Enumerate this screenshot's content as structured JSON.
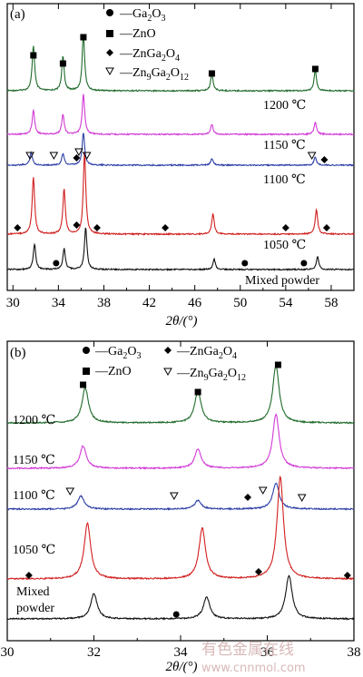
{
  "colors": {
    "c1200": "#1f6b2b",
    "c1150": "#d13ad6",
    "c1100": "#2d3fa6",
    "c1050": "#d11f1f",
    "cMixed": "#111111",
    "watermark": "#d9b8b8"
  },
  "watermark": {
    "cn": "有色金属在线",
    "url": "www.cnnmol.com"
  },
  "chart_data": [
    {
      "type": "line",
      "panel_tag": "(a)",
      "xlabel_main": "2θ/(°)",
      "xlim": [
        29.5,
        60
      ],
      "x_ticks": [
        30,
        34,
        38,
        42,
        46,
        50,
        54,
        58
      ],
      "legend": [
        {
          "marker": "circle",
          "label": "Ga2O3"
        },
        {
          "marker": "square",
          "label": "ZnO"
        },
        {
          "marker": "diamond",
          "label": "ZnGa2O4"
        },
        {
          "marker": "triangle",
          "label": "Zn9Ga2O12"
        }
      ],
      "traces": [
        {
          "name": "1200 ℃",
          "label": "1200 ℃",
          "color": "#1f6b2b",
          "peaks": [
            [
              31.8,
              0.8
            ],
            [
              34.4,
              0.6
            ],
            [
              36.2,
              1.0
            ],
            [
              47.5,
              0.3
            ],
            [
              56.6,
              0.35
            ]
          ]
        },
        {
          "name": "1150 ℃",
          "label": "1150 ℃",
          "color": "#d13ad6",
          "peaks": [
            [
              31.8,
              0.6
            ],
            [
              34.4,
              0.5
            ],
            [
              36.2,
              1.0
            ],
            [
              47.5,
              0.25
            ],
            [
              56.6,
              0.3
            ]
          ]
        },
        {
          "name": "1100 ℃",
          "label": "1100 ℃",
          "color": "#2d3fa6",
          "peaks": [
            [
              31.6,
              0.4
            ],
            [
              34.4,
              0.35
            ],
            [
              36.2,
              1.0
            ],
            [
              47.5,
              0.2
            ],
            [
              56.6,
              0.25
            ]
          ]
        },
        {
          "name": "1050 ℃",
          "label": "1050 ℃",
          "color": "#d11f1f",
          "peaks": [
            [
              31.8,
              0.7
            ],
            [
              34.5,
              0.55
            ],
            [
              36.3,
              1.0
            ],
            [
              47.6,
              0.25
            ],
            [
              56.7,
              0.3
            ]
          ]
        },
        {
          "name": "Mixed powder",
          "label": "Mixed powder",
          "color": "#111111",
          "peaks": [
            [
              31.9,
              0.6
            ],
            [
              34.5,
              0.5
            ],
            [
              36.4,
              1.0
            ],
            [
              47.7,
              0.25
            ],
            [
              56.8,
              0.3
            ]
          ]
        }
      ]
    },
    {
      "type": "line",
      "panel_tag": "(b)",
      "xlabel_main": "2θ/(°)",
      "xlim": [
        30,
        38
      ],
      "x_ticks": [
        30,
        32,
        34,
        36,
        38
      ],
      "legend": [
        {
          "marker": "circle",
          "label": "Ga2O3"
        },
        {
          "marker": "square",
          "label": "ZnO"
        },
        {
          "marker": "diamond",
          "label": "ZnGa2O4"
        },
        {
          "marker": "triangle",
          "label": "Zn9Ga2O12"
        }
      ],
      "traces": [
        {
          "name": "1200 ℃",
          "label": "1200 ℃",
          "color": "#1f6b2b",
          "peaks": [
            [
              31.8,
              0.55
            ],
            [
              34.4,
              0.5
            ],
            [
              36.2,
              0.9
            ]
          ]
        },
        {
          "name": "1150 ℃",
          "label": "1150 ℃",
          "color": "#d13ad6",
          "peaks": [
            [
              31.75,
              0.35
            ],
            [
              34.4,
              0.3
            ],
            [
              36.2,
              0.85
            ]
          ]
        },
        {
          "name": "1100 ℃",
          "label": "1100 ℃",
          "color": "#2d3fa6",
          "peaks": [
            [
              31.7,
              0.3
            ],
            [
              34.4,
              0.2
            ],
            [
              36.2,
              0.6
            ]
          ]
        },
        {
          "name": "1050 ℃",
          "label": "1050 ℃",
          "color": "#d11f1f",
          "peaks": [
            [
              31.85,
              0.55
            ],
            [
              34.5,
              0.5
            ],
            [
              36.3,
              1.0
            ]
          ]
        },
        {
          "name": "Mixed powder",
          "label": "Mixed\npowder",
          "color": "#111111",
          "peaks": [
            [
              32.0,
              0.35
            ],
            [
              34.6,
              0.3
            ],
            [
              36.5,
              0.6
            ]
          ]
        }
      ]
    }
  ]
}
